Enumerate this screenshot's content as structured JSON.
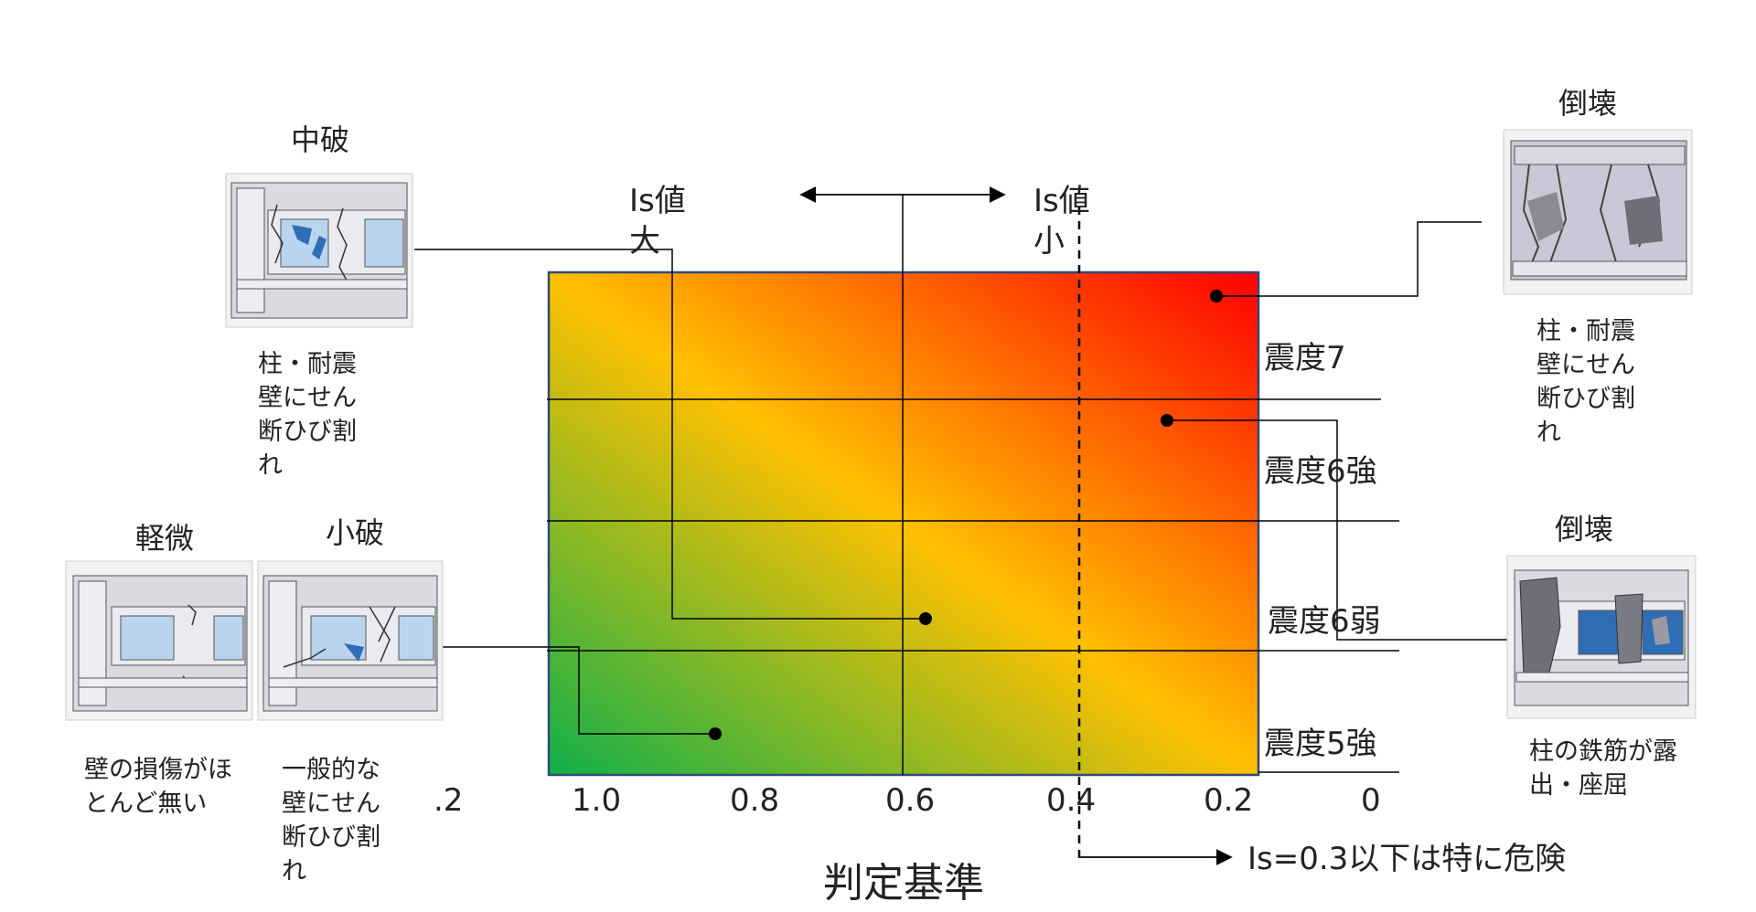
{
  "xaxis": {
    "title": "判定基準",
    "ticks": [
      ".2",
      "1.0",
      "0.8",
      "0.6",
      "0.4",
      "0.2",
      "0"
    ]
  },
  "header": {
    "is_large_line1": "Is値",
    "is_large_line2": "大",
    "is_small_line1": "Is値",
    "is_small_line2": "小"
  },
  "intensity_bands": [
    "震度7",
    "震度6強",
    "震度6弱",
    "震度5強"
  ],
  "danger_note": "Is=0.3以下は特に危険",
  "damage_cards": {
    "moderate": {
      "title": "中破",
      "desc": "柱・耐震壁にせん断ひび割れ"
    },
    "minor": {
      "title": "軽微",
      "desc": "壁の損傷がほとんど無い"
    },
    "small": {
      "title": "小破",
      "desc": "一般的な壁にせん断ひび割れ"
    },
    "collapse_top": {
      "title": "倒壊",
      "desc": "柱・耐震壁にせん断ひび割れ"
    },
    "collapse_bottom": {
      "title": "倒壊",
      "desc": "柱の鉄筋が露出・座屈"
    }
  },
  "colors": {
    "safe": "#10b04a",
    "mid": "#ffc000",
    "danger": "#ff0000",
    "frame": "#2f4a7d"
  }
}
